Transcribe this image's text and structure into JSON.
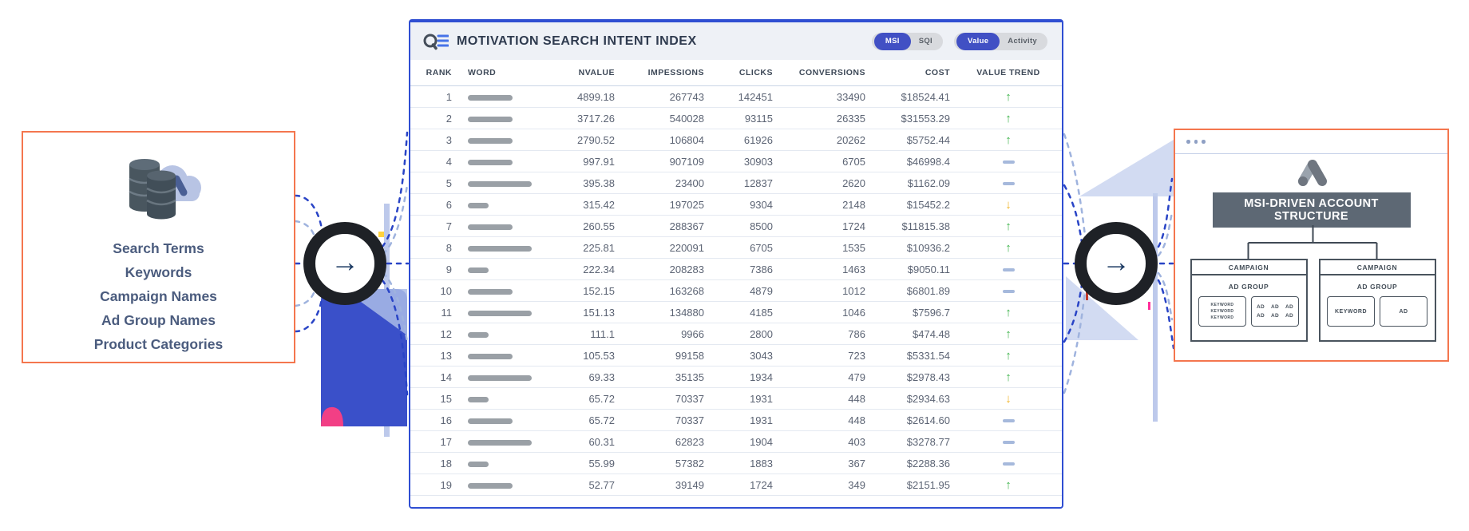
{
  "colors": {
    "card_border_orange": "#f4764e",
    "table_border_blue": "#2f4ed2",
    "pill_active_blue": "#4150c4",
    "banner_slate": "#5d6874",
    "trend_up_green": "#3cb34a",
    "trend_down_amber": "#f2b222",
    "trend_flat_blue": "#a6b9dc",
    "word_bar_gray": "#9aa0a6"
  },
  "left_card": {
    "icon": "database-cloud-ads-icon",
    "items": [
      "Search Terms",
      "Keywords",
      "Campaign Names",
      "Ad Group Names",
      "Product Categories"
    ]
  },
  "flow": {
    "arrow_icon": "arrow-right-icon",
    "arrow_glyph": "→"
  },
  "table": {
    "title": "MOTIVATION SEARCH INTENT INDEX",
    "title_icon": "search-list-icon",
    "toggles": [
      {
        "name": "msi-sqi-toggle",
        "options": [
          "MSI",
          "SQI"
        ],
        "active": "MSI"
      },
      {
        "name": "value-activity-toggle",
        "options": [
          "Value",
          "Activity"
        ],
        "active": "Value"
      }
    ],
    "columns": [
      "RANK",
      "WORD",
      "NVALUE",
      "IMPESSIONS",
      "CLICKS",
      "CONVERSIONS",
      "COST",
      "VALUE TREND"
    ],
    "rows": [
      {
        "rank": "1",
        "word_bar": "medium",
        "nvalue": "4899.18",
        "impressions": "267743",
        "clicks": "142451",
        "conversions": "33490",
        "cost": "$18524.41",
        "trend": "up"
      },
      {
        "rank": "2",
        "word_bar": "medium",
        "nvalue": "3717.26",
        "impressions": "540028",
        "clicks": "93115",
        "conversions": "26335",
        "cost": "$31553.29",
        "trend": "up"
      },
      {
        "rank": "3",
        "word_bar": "medium",
        "nvalue": "2790.52",
        "impressions": "106804",
        "clicks": "61926",
        "conversions": "20262",
        "cost": "$5752.44",
        "trend": "up"
      },
      {
        "rank": "4",
        "word_bar": "medium",
        "nvalue": "997.91",
        "impressions": "907109",
        "clicks": "30903",
        "conversions": "6705",
        "cost": "$46998.4",
        "trend": "flat"
      },
      {
        "rank": "5",
        "word_bar": "long",
        "nvalue": "395.38",
        "impressions": "23400",
        "clicks": "12837",
        "conversions": "2620",
        "cost": "$1162.09",
        "trend": "flat"
      },
      {
        "rank": "6",
        "word_bar": "short",
        "nvalue": "315.42",
        "impressions": "197025",
        "clicks": "9304",
        "conversions": "2148",
        "cost": "$15452.2",
        "trend": "down"
      },
      {
        "rank": "7",
        "word_bar": "medium",
        "nvalue": "260.55",
        "impressions": "288367",
        "clicks": "8500",
        "conversions": "1724",
        "cost": "$11815.38",
        "trend": "up"
      },
      {
        "rank": "8",
        "word_bar": "long",
        "nvalue": "225.81",
        "impressions": "220091",
        "clicks": "6705",
        "conversions": "1535",
        "cost": "$10936.2",
        "trend": "up"
      },
      {
        "rank": "9",
        "word_bar": "short",
        "nvalue": "222.34",
        "impressions": "208283",
        "clicks": "7386",
        "conversions": "1463",
        "cost": "$9050.11",
        "trend": "flat"
      },
      {
        "rank": "10",
        "word_bar": "medium",
        "nvalue": "152.15",
        "impressions": "163268",
        "clicks": "4879",
        "conversions": "1012",
        "cost": "$6801.89",
        "trend": "flat"
      },
      {
        "rank": "11",
        "word_bar": "long",
        "nvalue": "151.13",
        "impressions": "134880",
        "clicks": "4185",
        "conversions": "1046",
        "cost": "$7596.7",
        "trend": "up"
      },
      {
        "rank": "12",
        "word_bar": "short",
        "nvalue": "111.1",
        "impressions": "9966",
        "clicks": "2800",
        "conversions": "786",
        "cost": "$474.48",
        "trend": "up"
      },
      {
        "rank": "13",
        "word_bar": "medium",
        "nvalue": "105.53",
        "impressions": "99158",
        "clicks": "3043",
        "conversions": "723",
        "cost": "$5331.54",
        "trend": "up"
      },
      {
        "rank": "14",
        "word_bar": "long",
        "nvalue": "69.33",
        "impressions": "35135",
        "clicks": "1934",
        "conversions": "479",
        "cost": "$2978.43",
        "trend": "up"
      },
      {
        "rank": "15",
        "word_bar": "short",
        "nvalue": "65.72",
        "impressions": "70337",
        "clicks": "1931",
        "conversions": "448",
        "cost": "$2934.63",
        "trend": "down"
      },
      {
        "rank": "16",
        "word_bar": "medium",
        "nvalue": "65.72",
        "impressions": "70337",
        "clicks": "1931",
        "conversions": "448",
        "cost": "$2614.60",
        "trend": "flat"
      },
      {
        "rank": "17",
        "word_bar": "long",
        "nvalue": "60.31",
        "impressions": "62823",
        "clicks": "1904",
        "conversions": "403",
        "cost": "$3278.77",
        "trend": "flat"
      },
      {
        "rank": "18",
        "word_bar": "short",
        "nvalue": "55.99",
        "impressions": "57382",
        "clicks": "1883",
        "conversions": "367",
        "cost": "$2288.36",
        "trend": "flat"
      },
      {
        "rank": "19",
        "word_bar": "medium",
        "nvalue": "52.77",
        "impressions": "39149",
        "clicks": "1724",
        "conversions": "349",
        "cost": "$2151.95",
        "trend": "up"
      }
    ],
    "trend_glyphs": {
      "up": "↑",
      "down": "↓",
      "flat": "—"
    }
  },
  "right_card": {
    "window_dots_icon": "window-dots-icon",
    "logo_icon": "google-ads-icon",
    "banner": "MSI-DRIVEN ACCOUNT STRUCTURE",
    "campaigns": [
      {
        "label": "CAMPAIGN",
        "ad_group_label": "AD GROUP",
        "children": [
          {
            "type": "keyword-list",
            "items": [
              "KEYWORD",
              "KEYWORD",
              "KEYWORD"
            ]
          },
          {
            "type": "ad-grid",
            "items": [
              "AD",
              "AD",
              "AD",
              "AD",
              "AD",
              "AD"
            ]
          }
        ]
      },
      {
        "label": "CAMPAIGN",
        "ad_group_label": "AD GROUP",
        "children": [
          {
            "type": "keyword-single",
            "items": [
              "KEYWORD"
            ]
          },
          {
            "type": "ad-single",
            "items": [
              "AD"
            ]
          }
        ]
      }
    ]
  }
}
